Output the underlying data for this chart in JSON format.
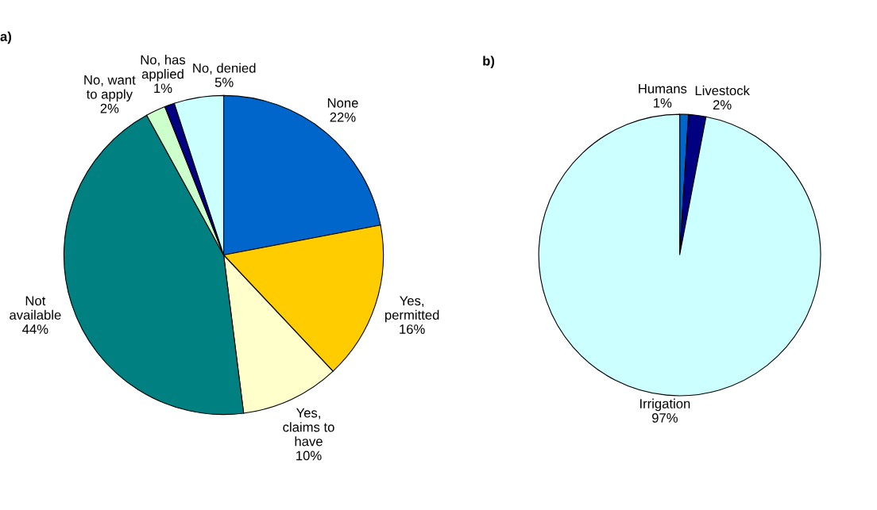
{
  "chart_data": [
    {
      "type": "pie",
      "title": "a)",
      "categories": [
        "None",
        "Yes,\npermitted",
        "Yes,\nclaims to\nhave",
        "Not\navailable",
        "No, want\nto apply",
        "No, has\napplied",
        "No, denied"
      ],
      "values": [
        22,
        16,
        10,
        44,
        2,
        1,
        5
      ],
      "value_labels": [
        "22%",
        "16%",
        "10%",
        "44%",
        "2%",
        "1%",
        "5%"
      ],
      "colors": [
        "#0066cc",
        "#ffcc00",
        "#ffffcc",
        "#008080",
        "#ccffcc",
        "#000080",
        "#ccffff"
      ]
    },
    {
      "type": "pie",
      "title": "b)",
      "categories": [
        "Humans",
        "Livestock",
        "Irrigation"
      ],
      "values": [
        1,
        2,
        97
      ],
      "value_labels": [
        "1%",
        "2%",
        "97%"
      ],
      "colors": [
        "#0066cc",
        "#000080",
        "#ccffff"
      ]
    }
  ]
}
